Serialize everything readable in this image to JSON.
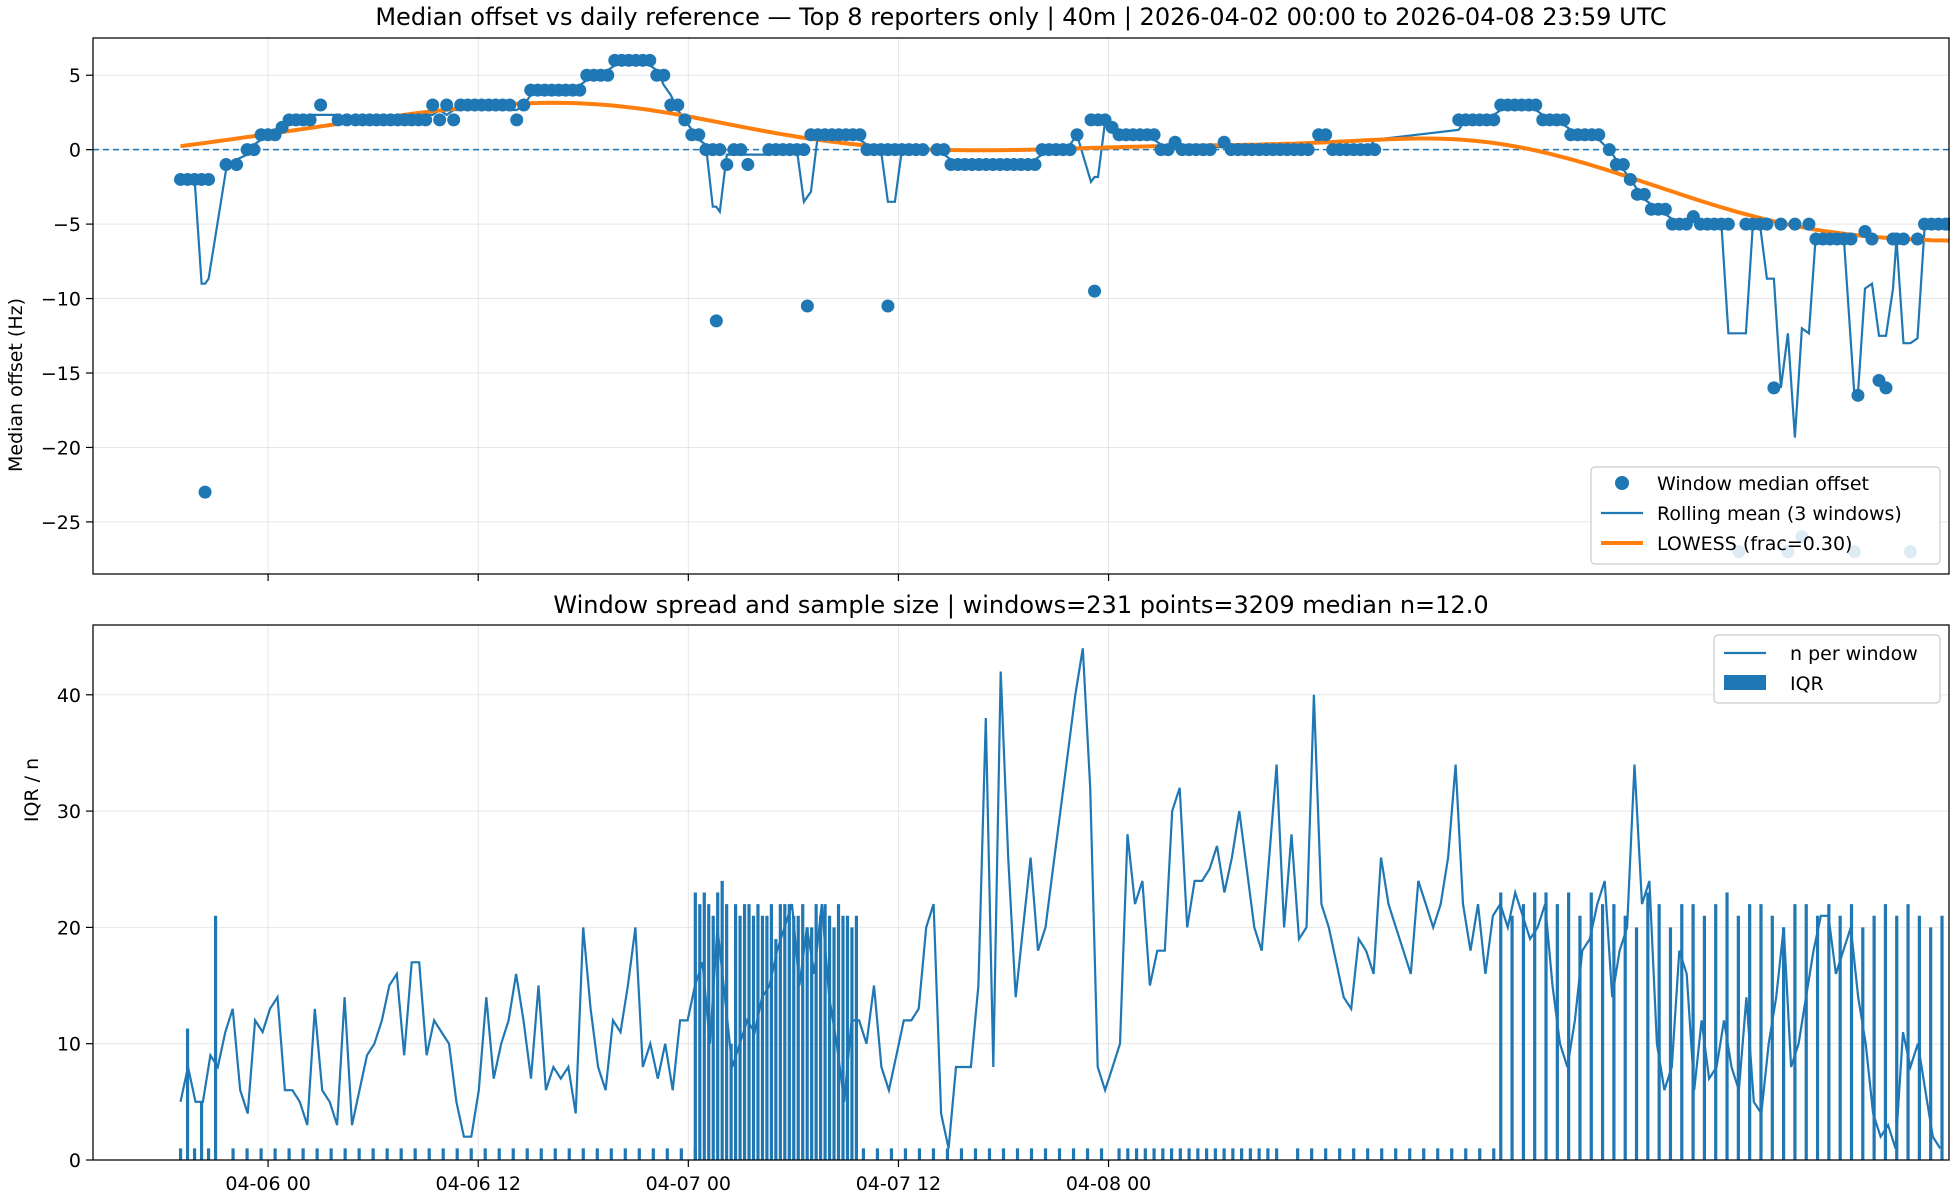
{
  "chart_data": [
    {
      "type": "scatter",
      "title": "Median offset vs daily reference — Top 8 reporters only | 40m | 2026-04-02 00:00 to 2026-04-08 23:59 UTC",
      "ylabel": "Median offset (Hz)",
      "ylim": [
        -28.5,
        7.5
      ],
      "xlim": [
        -10,
        96
      ],
      "x_unit": "hours since 04-06 00",
      "grid": true,
      "legend_position": "lower-right",
      "y_ticks": [
        5,
        0,
        -5,
        -10,
        -15,
        -20,
        -25
      ],
      "y_tick_labels": [
        "5",
        "0",
        "−5",
        "−10",
        "−15",
        "−20",
        "−25"
      ],
      "reference_line": 0,
      "legend": [
        "Window median offset",
        "Rolling mean (3 windows)",
        "LOWESS (frac=0.30)"
      ],
      "series": [
        {
          "name": "Window median offset",
          "color": "#1f77b4",
          "points": [
            [
              -5,
              -2
            ],
            [
              -4.6,
              -2
            ],
            [
              -4.2,
              -2
            ],
            [
              -3.8,
              -2
            ],
            [
              -3.4,
              -2
            ],
            [
              -2.4,
              -1
            ],
            [
              -1.8,
              -1
            ],
            [
              -1.2,
              0
            ],
            [
              -0.8,
              0
            ],
            [
              -0.4,
              1
            ],
            [
              0,
              1
            ],
            [
              0.4,
              1
            ],
            [
              0.8,
              1.5
            ],
            [
              1.2,
              2
            ],
            [
              1.6,
              2
            ],
            [
              2,
              2
            ],
            [
              2.4,
              2
            ],
            [
              3,
              3
            ],
            [
              4,
              2
            ],
            [
              4.5,
              2
            ],
            [
              5,
              2
            ],
            [
              5.4,
              2
            ],
            [
              5.8,
              2
            ],
            [
              6.2,
              2
            ],
            [
              6.6,
              2
            ],
            [
              7,
              2
            ],
            [
              7.4,
              2
            ],
            [
              7.8,
              2
            ],
            [
              8.2,
              2
            ],
            [
              8.6,
              2
            ],
            [
              9,
              2
            ],
            [
              9.4,
              3
            ],
            [
              9.8,
              2
            ],
            [
              10.2,
              3
            ],
            [
              10.6,
              2
            ],
            [
              11,
              3
            ],
            [
              11.4,
              3
            ],
            [
              11.8,
              3
            ],
            [
              12.2,
              3
            ],
            [
              12.6,
              3
            ],
            [
              13,
              3
            ],
            [
              13.4,
              3
            ],
            [
              13.8,
              3
            ],
            [
              14.2,
              2
            ],
            [
              14.6,
              3
            ],
            [
              15,
              4
            ],
            [
              15.4,
              4
            ],
            [
              15.8,
              4
            ],
            [
              16.2,
              4
            ],
            [
              16.6,
              4
            ],
            [
              17,
              4
            ],
            [
              17.4,
              4
            ],
            [
              17.8,
              4
            ],
            [
              18.2,
              5
            ],
            [
              18.6,
              5
            ],
            [
              19,
              5
            ],
            [
              19.4,
              5
            ],
            [
              19.8,
              6
            ],
            [
              20.2,
              6
            ],
            [
              20.6,
              6
            ],
            [
              21,
              6
            ],
            [
              21.4,
              6
            ],
            [
              21.8,
              6
            ],
            [
              22.2,
              5
            ],
            [
              22.6,
              5
            ],
            [
              23,
              3
            ],
            [
              23.4,
              3
            ],
            [
              23.8,
              2
            ],
            [
              24.2,
              1
            ],
            [
              24.6,
              1
            ],
            [
              25,
              0
            ],
            [
              25.4,
              0
            ],
            [
              25.8,
              0
            ],
            [
              26.2,
              -1
            ],
            [
              26.6,
              0
            ],
            [
              27,
              0
            ],
            [
              27.4,
              -1
            ],
            [
              28.6,
              0
            ],
            [
              29,
              0
            ],
            [
              29.4,
              0
            ],
            [
              29.8,
              0
            ],
            [
              30.2,
              0
            ],
            [
              30.6,
              0
            ],
            [
              31,
              1
            ],
            [
              31.4,
              1
            ],
            [
              31.8,
              1
            ],
            [
              32.2,
              1
            ],
            [
              32.6,
              1
            ],
            [
              33,
              1
            ],
            [
              33.4,
              1
            ],
            [
              33.8,
              1
            ],
            [
              34.2,
              0
            ],
            [
              34.6,
              0
            ],
            [
              35,
              0
            ],
            [
              35.4,
              0
            ],
            [
              35.8,
              0
            ],
            [
              36.2,
              0
            ],
            [
              36.6,
              0
            ],
            [
              37,
              0
            ],
            [
              37.4,
              0
            ],
            [
              38.2,
              0
            ],
            [
              38.6,
              0
            ],
            [
              39,
              -1
            ],
            [
              39.4,
              -1
            ],
            [
              39.8,
              -1
            ],
            [
              40.2,
              -1
            ],
            [
              40.6,
              -1
            ],
            [
              41,
              -1
            ],
            [
              41.4,
              -1
            ],
            [
              41.8,
              -1
            ],
            [
              42.2,
              -1
            ],
            [
              42.6,
              -1
            ],
            [
              43,
              -1
            ],
            [
              43.4,
              -1
            ],
            [
              43.8,
              -1
            ],
            [
              44.2,
              0
            ],
            [
              44.6,
              0
            ],
            [
              45,
              0
            ],
            [
              45.4,
              0
            ],
            [
              45.8,
              0
            ],
            [
              46.2,
              1
            ],
            [
              47,
              2
            ],
            [
              47.4,
              2
            ],
            [
              47.8,
              2
            ],
            [
              48.2,
              1.5
            ],
            [
              48.6,
              1
            ],
            [
              49,
              1
            ],
            [
              49.4,
              1
            ],
            [
              49.8,
              1
            ],
            [
              50.2,
              1
            ],
            [
              50.6,
              1
            ],
            [
              51,
              0
            ],
            [
              51.4,
              0
            ],
            [
              51.8,
              0.5
            ],
            [
              52.2,
              0
            ],
            [
              52.6,
              0
            ],
            [
              53,
              0
            ],
            [
              53.4,
              0
            ],
            [
              53.8,
              0
            ],
            [
              54.6,
              0.5
            ],
            [
              55,
              0
            ],
            [
              55.4,
              0
            ],
            [
              55.8,
              0
            ],
            [
              56.2,
              0
            ],
            [
              56.6,
              0
            ],
            [
              57,
              0
            ],
            [
              57.4,
              0
            ],
            [
              57.8,
              0
            ],
            [
              58.2,
              0
            ],
            [
              58.6,
              0
            ],
            [
              59,
              0
            ],
            [
              59.4,
              0
            ],
            [
              60,
              1
            ],
            [
              60.4,
              1
            ],
            [
              60.8,
              0
            ],
            [
              61.2,
              0
            ],
            [
              61.6,
              0
            ],
            [
              62,
              0
            ],
            [
              62.4,
              0
            ],
            [
              62.8,
              0
            ],
            [
              63.2,
              0
            ],
            [
              68,
              2
            ],
            [
              68.4,
              2
            ],
            [
              68.8,
              2
            ],
            [
              69.2,
              2
            ],
            [
              69.6,
              2
            ],
            [
              70,
              2
            ],
            [
              70.4,
              3
            ],
            [
              70.8,
              3
            ],
            [
              71.2,
              3
            ],
            [
              71.6,
              3
            ],
            [
              72,
              3
            ],
            [
              72.4,
              3
            ],
            [
              72.8,
              2
            ],
            [
              73.2,
              2
            ],
            [
              73.6,
              2
            ],
            [
              74,
              2
            ],
            [
              74.4,
              1
            ],
            [
              74.8,
              1
            ],
            [
              75.2,
              1
            ],
            [
              75.6,
              1
            ],
            [
              76,
              1
            ],
            [
              76.6,
              0
            ],
            [
              77,
              -1
            ],
            [
              77.4,
              -1
            ],
            [
              77.8,
              -2
            ],
            [
              78.2,
              -3
            ],
            [
              78.6,
              -3
            ],
            [
              79,
              -4
            ],
            [
              79.4,
              -4
            ],
            [
              79.8,
              -4
            ],
            [
              80.2,
              -5
            ],
            [
              80.6,
              -5
            ],
            [
              81,
              -5
            ],
            [
              81.4,
              -4.5
            ],
            [
              81.8,
              -5
            ],
            [
              82.2,
              -5
            ],
            [
              82.6,
              -5
            ],
            [
              83,
              -5
            ],
            [
              83.4,
              -5
            ],
            [
              84,
              -27
            ],
            [
              84.4,
              -5
            ],
            [
              84.8,
              -5
            ],
            [
              85.2,
              -5
            ],
            [
              85.6,
              -5
            ],
            [
              86,
              -16
            ],
            [
              86.4,
              -5
            ],
            [
              86.8,
              -27
            ],
            [
              87.2,
              -5
            ],
            [
              87.6,
              -26
            ],
            [
              88,
              -5
            ],
            [
              88.4,
              -6
            ],
            [
              88.8,
              -6
            ],
            [
              89.2,
              -6
            ],
            [
              89.6,
              -6
            ],
            [
              90,
              -6
            ],
            [
              90.4,
              -6
            ],
            [
              90.6,
              -27
            ],
            [
              90.8,
              -16.5
            ],
            [
              91.2,
              -5.5
            ],
            [
              91.6,
              -6
            ],
            [
              92,
              -15.5
            ],
            [
              92.4,
              -16
            ],
            [
              92.8,
              -6
            ],
            [
              93,
              -6
            ],
            [
              93.4,
              -6
            ],
            [
              93.8,
              -27
            ],
            [
              94.2,
              -6
            ],
            [
              94.6,
              -5
            ],
            [
              95,
              -5
            ],
            [
              95.4,
              -5
            ],
            [
              95.8,
              -5
            ],
            [
              96,
              -5
            ],
            [
              -3.6,
              -23
            ],
            [
              25.6,
              -11.5
            ],
            [
              30.8,
              -10.5
            ],
            [
              35.4,
              -10.5
            ],
            [
              47.2,
              -9.5
            ]
          ]
        },
        {
          "name": "Rolling mean (3 windows)",
          "color": "#1f77b4"
        },
        {
          "name": "LOWESS (frac=0.30)",
          "color": "#ff7f0e"
        }
      ]
    },
    {
      "type": "bar",
      "title": "Window spread and sample size | windows=231 points=3209 median n=12.0",
      "ylabel": "IQR / n",
      "ylim": [
        0,
        46
      ],
      "xlim": [
        -10,
        96
      ],
      "grid": true,
      "legend_position": "top-right",
      "y_ticks": [
        0,
        10,
        20,
        30,
        40
      ],
      "legend": [
        "n per window",
        "IQR"
      ],
      "x_ticks": [
        {
          "value": 0,
          "label": "04-06 00"
        },
        {
          "value": 12,
          "label": "04-06 12"
        },
        {
          "value": 24,
          "label": "04-07 00"
        },
        {
          "value": 36,
          "label": "04-07 12"
        },
        {
          "value": 48,
          "label": "04-08 00"
        }
      ],
      "series": [
        {
          "name": "n per window",
          "color": "#1f77b4"
        },
        {
          "name": "IQR",
          "color": "#1f77b4"
        }
      ]
    }
  ]
}
